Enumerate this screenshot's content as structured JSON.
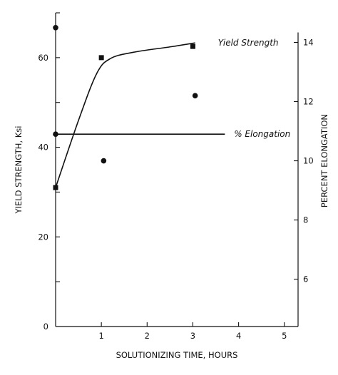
{
  "chart_data": {
    "type": "scatter",
    "xlabel": "SOLUTIONIZING TIME, HOURS",
    "ylabel": "YIELD STRENGTH, Ksi",
    "y2label": "PERCENT ELONGATION",
    "xlim": [
      0,
      5.3
    ],
    "ylim": [
      0,
      70
    ],
    "y2lim": [
      4.4,
      15
    ],
    "xticks": [
      1,
      2,
      3,
      4,
      5
    ],
    "yticks": [
      0,
      20,
      40,
      60
    ],
    "y2ticks": [
      6,
      8,
      10,
      12,
      14
    ],
    "grid": false,
    "series": [
      {
        "name": "Yield Strength",
        "axis": "left",
        "marker": "square",
        "points": [
          [
            0,
            31
          ],
          [
            1,
            60
          ],
          [
            3,
            62.5
          ]
        ],
        "fit": [
          [
            0,
            31
          ],
          [
            0.5,
            46
          ],
          [
            0.9,
            56.5
          ],
          [
            1.2,
            59.8
          ],
          [
            1.7,
            61.2
          ],
          [
            2.5,
            62.4
          ],
          [
            3.05,
            63.3
          ]
        ]
      },
      {
        "name": "% Elongation",
        "axis": "right",
        "marker": "circle",
        "points": [
          [
            0,
            14.5
          ],
          [
            0,
            10.9
          ],
          [
            1.05,
            10
          ],
          [
            3.05,
            12.2
          ]
        ],
        "fit": [
          [
            0,
            10.9
          ],
          [
            3.7,
            10.9
          ]
        ]
      }
    ]
  }
}
